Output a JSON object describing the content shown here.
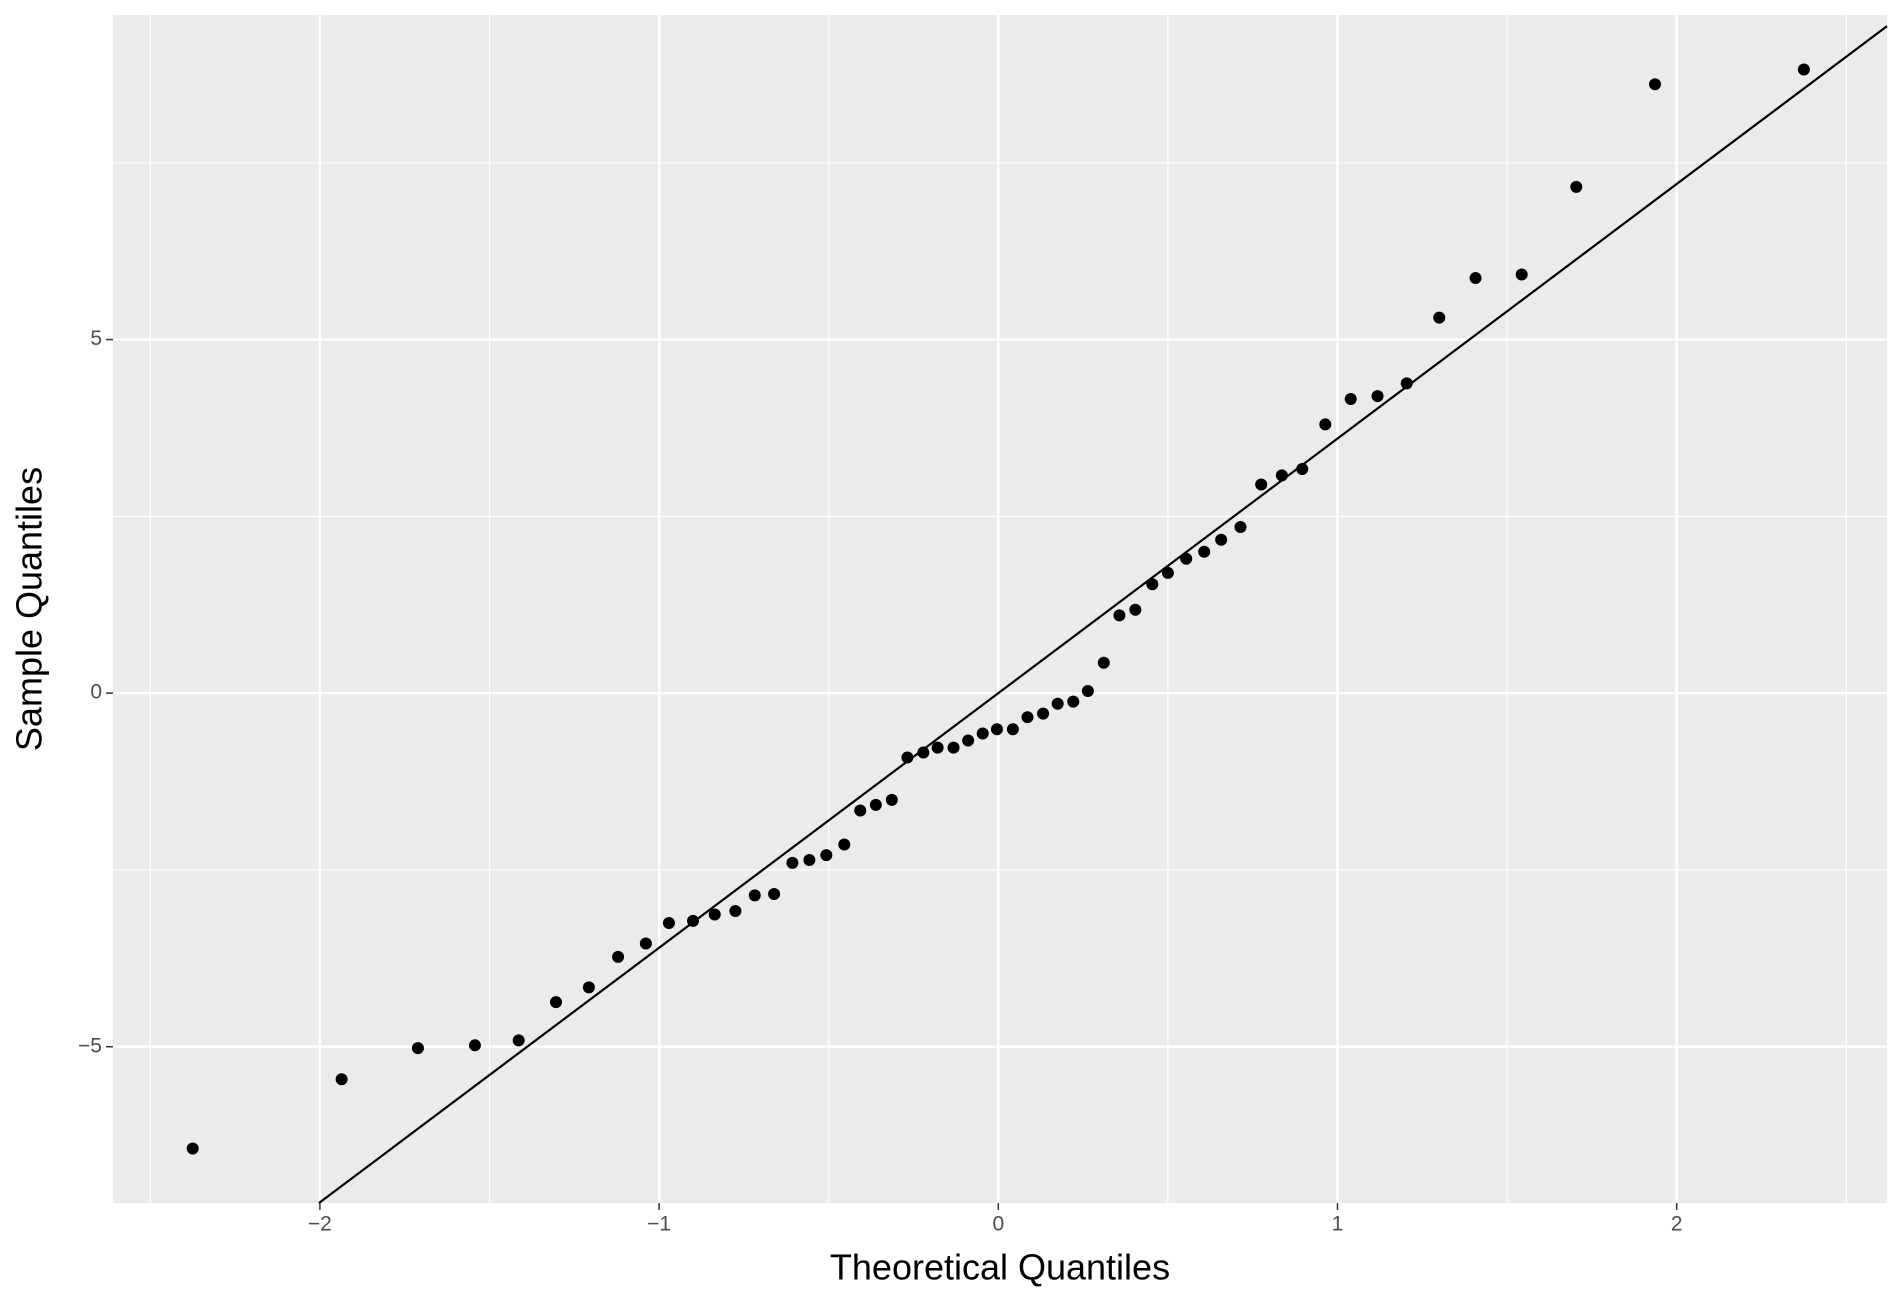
{
  "chart_data": {
    "type": "scatter",
    "x_label": "Theoretical Quantiles",
    "y_label": "Sample Quantiles",
    "x": [
      -2.375,
      -1.936,
      -1.711,
      -1.543,
      -1.414,
      -1.304,
      -1.207,
      -1.121,
      -1.039,
      -0.971,
      -0.9,
      -0.836,
      -0.775,
      -0.718,
      -0.661,
      -0.607,
      -0.557,
      -0.507,
      -0.454,
      -0.407,
      -0.361,
      -0.314,
      -0.268,
      -0.221,
      -0.179,
      -0.132,
      -0.089,
      -0.046,
      -0.004,
      0.043,
      0.086,
      0.132,
      0.175,
      0.221,
      0.264,
      0.311,
      0.357,
      0.404,
      0.454,
      0.5,
      0.554,
      0.607,
      0.657,
      0.714,
      0.775,
      0.836,
      0.896,
      0.964,
      1.039,
      1.118,
      1.204,
      1.3,
      1.407,
      1.543,
      1.704,
      1.936,
      2.375
    ],
    "values": [
      -6.44,
      -5.46,
      -5.02,
      -4.98,
      -4.91,
      -4.37,
      -4.16,
      -3.73,
      -3.54,
      -3.25,
      -3.22,
      -3.13,
      -3.08,
      -2.86,
      -2.84,
      -2.4,
      -2.36,
      -2.29,
      -2.14,
      -1.66,
      -1.58,
      -1.51,
      -0.91,
      -0.84,
      -0.77,
      -0.77,
      -0.67,
      -0.57,
      -0.51,
      -0.51,
      -0.34,
      -0.29,
      -0.15,
      -0.12,
      0.03,
      0.43,
      1.1,
      1.18,
      1.54,
      1.7,
      1.9,
      2.0,
      2.17,
      2.35,
      2.95,
      3.08,
      3.17,
      3.8,
      4.16,
      4.2,
      4.38,
      5.31,
      5.87,
      5.92,
      7.16,
      8.61,
      8.82
    ],
    "color": "#000000",
    "line": {
      "slope": 3.6,
      "intercept": 0,
      "color": "#000000"
    },
    "xlim": [
      -2.61,
      2.62
    ],
    "ylim": [
      -7.21,
      9.59
    ],
    "xticks": [
      {
        "value": -2,
        "label": "−2"
      },
      {
        "value": -1,
        "label": "−1"
      },
      0,
      1,
      2
    ],
    "yticks": [
      {
        "value": -5,
        "label": "−5"
      },
      0,
      5
    ],
    "xminor": [
      -2.5,
      -1.5,
      -0.5,
      0.5,
      1.5,
      2.5
    ],
    "yminor": [
      -2.5,
      2.5,
      7.5
    ],
    "grid": true
  }
}
